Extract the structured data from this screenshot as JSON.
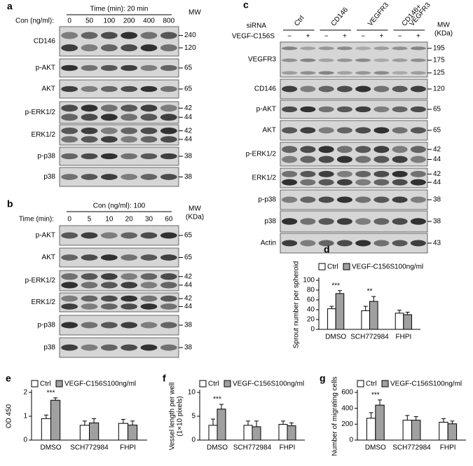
{
  "blots": [
    {
      "label": "a",
      "header": "Time (min): 20 min",
      "lane_title": "Con (ng/ml):",
      "lanes": [
        "0",
        "50",
        "100",
        "200",
        "400",
        "800"
      ],
      "mw": "MW",
      "rows": [
        {
          "name": "CD146",
          "markers": [
            240,
            120
          ]
        },
        {
          "name": "p-AKT",
          "markers": [
            65
          ]
        },
        {
          "name": "AKT",
          "markers": [
            65
          ]
        },
        {
          "name": "p-ERK1/2",
          "markers": [
            42,
            44
          ]
        },
        {
          "name": "ERK1/2",
          "markers": [
            42,
            44
          ]
        },
        {
          "name": "p-p38",
          "markers": [
            38
          ]
        },
        {
          "name": "p38",
          "markers": [
            38
          ]
        }
      ]
    },
    {
      "label": "b",
      "header": "Con (ng/ml): 100",
      "lane_title": "Time (min):",
      "lanes": [
        "0",
        "5",
        "10",
        "20",
        "30",
        "60"
      ],
      "mw": "MW",
      "mw_unit": "(KDa)",
      "rows": [
        {
          "name": "p-AKT",
          "markers": [
            65
          ]
        },
        {
          "name": "AKT",
          "markers": [
            65
          ]
        },
        {
          "name": "p-ERK1/2",
          "markers": [
            42,
            44
          ]
        },
        {
          "name": "ERK1/2",
          "markers": [
            42,
            44
          ]
        },
        {
          "name": "p-p38",
          "markers": [
            38
          ]
        },
        {
          "name": "p38",
          "markers": [
            38
          ]
        }
      ]
    },
    {
      "label": "c",
      "group_title": "siRNA",
      "groups": [
        [
          "Ctrl"
        ],
        [
          "CD146"
        ],
        [
          "VEGFR3"
        ],
        [
          "CD146+",
          "VEGFR3"
        ]
      ],
      "lane_title": "VEGF-C156S",
      "lanes": [
        "−",
        "+",
        "−",
        "+",
        "−",
        "+",
        "−",
        "+"
      ],
      "mw": "MW",
      "mw_unit": "(KDa)",
      "rows": [
        {
          "name": "VEGFR3",
          "markers": [
            195,
            175,
            125
          ]
        },
        {
          "name": "CD146",
          "markers": [
            120
          ]
        },
        {
          "name": "p-AKT",
          "markers": [
            65
          ]
        },
        {
          "name": "AKT",
          "markers": [
            65
          ]
        },
        {
          "name": "p-ERK1/2",
          "markers": [
            42,
            44
          ]
        },
        {
          "name": "ERK1/2",
          "markers": [
            42,
            44
          ]
        },
        {
          "name": "p-p38",
          "markers": [
            38
          ]
        },
        {
          "name": "p38",
          "markers": [
            38
          ]
        },
        {
          "name": "Actin",
          "markers": [
            43
          ]
        }
      ]
    }
  ],
  "chart_data": [
    {
      "label": "d",
      "type": "bar",
      "ylabel": [
        "Sprout number per spheroid"
      ],
      "legend_note": "100ng/ml",
      "categories": [
        "DMSO",
        "SCH772984",
        "FHPI"
      ],
      "ylim": [
        0,
        100
      ],
      "yticks": [
        0,
        20,
        40,
        60,
        80,
        100
      ],
      "series": [
        {
          "name": "Ctrl",
          "color": "#ffffff",
          "values": [
            42,
            38,
            33
          ],
          "errors": [
            5,
            9,
            6
          ]
        },
        {
          "name": "VEGF-C156S",
          "color": "#a0a0a0",
          "values": [
            73,
            57,
            30
          ],
          "errors": [
            6,
            10,
            5
          ],
          "significance": [
            "***",
            "**",
            null
          ]
        }
      ]
    },
    {
      "label": "e",
      "type": "bar",
      "ylabel": [
        "OD 450"
      ],
      "legend_note": "100ng/ml",
      "categories": [
        "DMSO",
        "SCH772984",
        "FHPI"
      ],
      "ylim": [
        0,
        2
      ],
      "yticks": [
        0,
        1,
        2
      ],
      "series": [
        {
          "name": "Ctrl",
          "color": "#ffffff",
          "values": [
            0.9,
            0.62,
            0.7
          ],
          "errors": [
            0.15,
            0.18,
            0.17
          ]
        },
        {
          "name": "VEGF-C156S",
          "color": "#a0a0a0",
          "values": [
            1.67,
            0.72,
            0.63
          ],
          "errors": [
            0.1,
            0.18,
            0.17
          ],
          "significance": [
            "***",
            null,
            null
          ]
        }
      ]
    },
    {
      "label": "f",
      "type": "bar",
      "ylabel": [
        "Vessel length per well",
        "(1×10  pixels)"
      ],
      "legend_note": "100ng/ml",
      "categories": [
        "DMSO",
        "SCH772984",
        "FHPI"
      ],
      "ylim": [
        0,
        10
      ],
      "yticks": [
        0,
        5,
        10
      ],
      "series": [
        {
          "name": "Ctrl",
          "color": "#ffffff",
          "values": [
            3.1,
            3.1,
            3.3
          ],
          "errors": [
            1.3,
            0.9,
            0.7
          ]
        },
        {
          "name": "VEGF-C156S",
          "color": "#a0a0a0",
          "values": [
            6.5,
            2.8,
            3.0
          ],
          "errors": [
            1.0,
            1.2,
            0.6
          ],
          "significance": [
            "***",
            null,
            null
          ]
        }
      ]
    },
    {
      "label": "g",
      "type": "bar",
      "ylabel": [
        "Number of migrating cells"
      ],
      "legend_note": "100ng/ml",
      "categories": [
        "DMSO",
        "SCH772984",
        "FHPI"
      ],
      "ylim": [
        0,
        600
      ],
      "yticks": [
        0,
        200,
        400,
        600
      ],
      "series": [
        {
          "name": "Ctrl",
          "color": "#ffffff",
          "values": [
            275,
            250,
            225
          ],
          "errors": [
            70,
            60,
            45
          ]
        },
        {
          "name": "VEGF-C156S",
          "color": "#a0a0a0",
          "values": [
            440,
            250,
            205
          ],
          "errors": [
            65,
            45,
            35
          ],
          "significance": [
            "***",
            null,
            null
          ]
        }
      ]
    }
  ]
}
